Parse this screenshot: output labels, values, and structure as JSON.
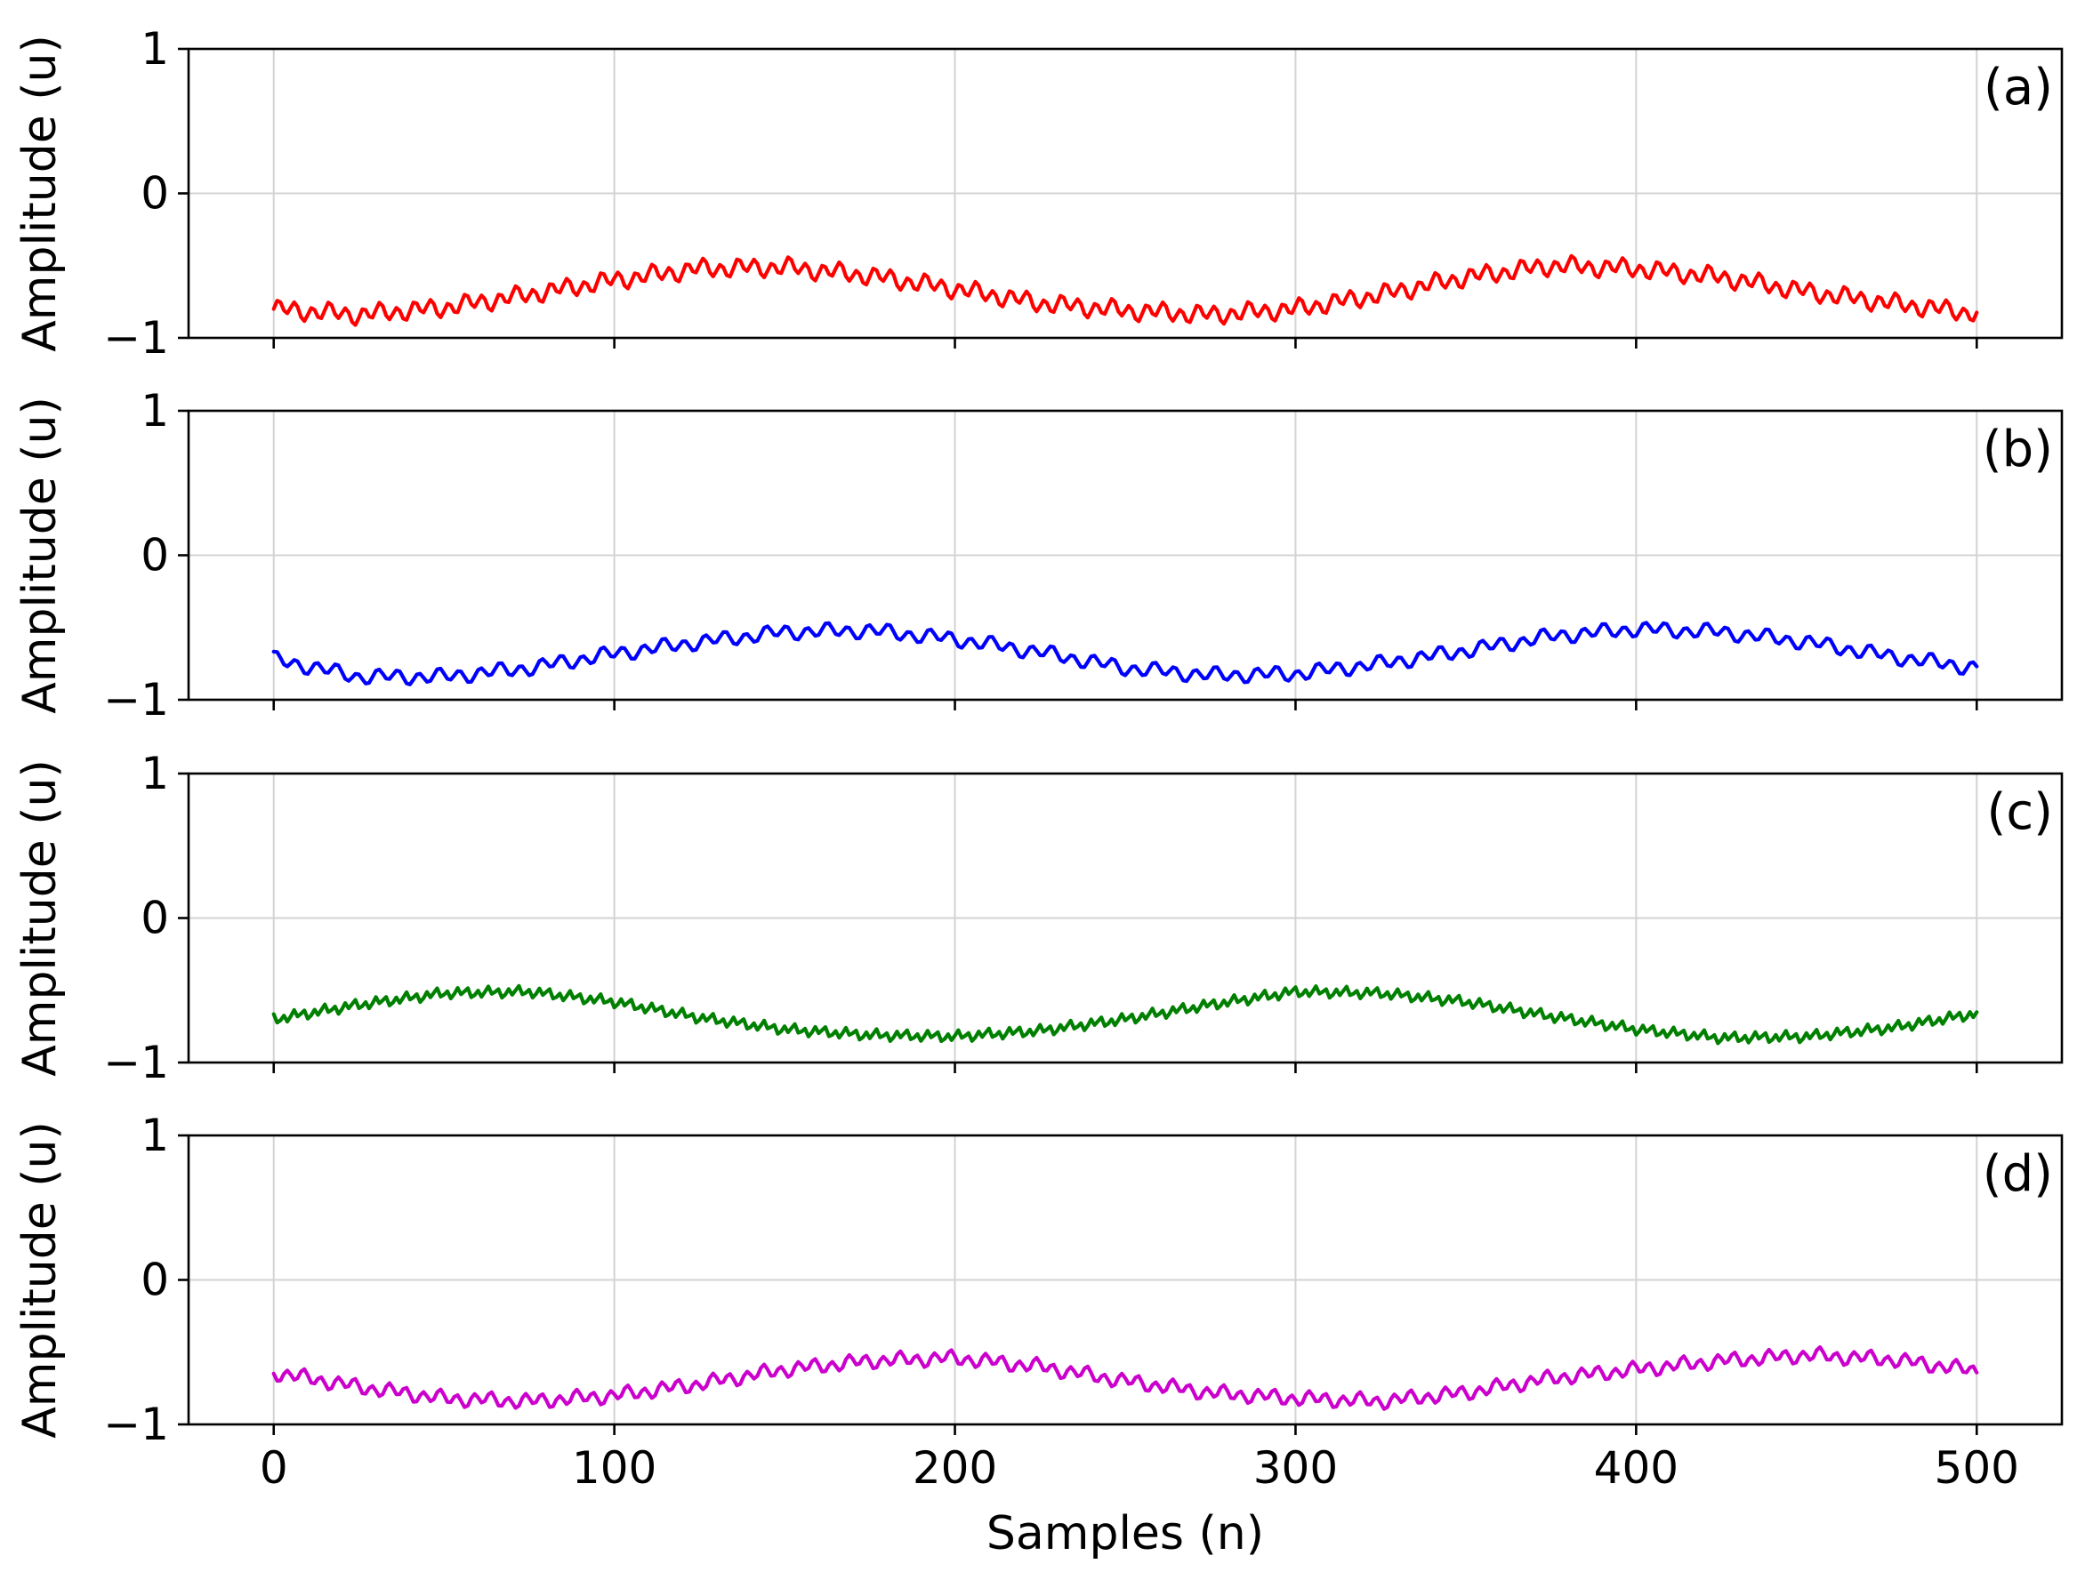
{
  "chart_data": [
    {
      "type": "line",
      "panel": "(a)",
      "ylabel": "Amplitude (u)",
      "xlabel": "",
      "xlim": [
        -25,
        525
      ],
      "ylim": [
        -1,
        1
      ],
      "xticks": [
        0,
        100,
        200,
        300,
        400,
        500
      ],
      "yticks": [
        1,
        0,
        -1
      ],
      "ytick_labels": [
        "1",
        "0",
        "−1"
      ],
      "grid": true,
      "series": [
        {
          "color": "#ff0000",
          "x": [
            0,
            25,
            50,
            75,
            100,
            125,
            150,
            175,
            200,
            225,
            250,
            275,
            300,
            325,
            350,
            375,
            400,
            425,
            450,
            475,
            500
          ],
          "y": [
            -0.8,
            -0.84,
            -0.79,
            -0.7,
            -0.6,
            -0.52,
            -0.51,
            -0.57,
            -0.66,
            -0.76,
            -0.81,
            -0.84,
            -0.8,
            -0.7,
            -0.58,
            -0.5,
            -0.52,
            -0.58,
            -0.68,
            -0.76,
            -0.83
          ],
          "noise_amplitude": 0.05,
          "noise_period": 5
        }
      ]
    },
    {
      "type": "line",
      "panel": "(b)",
      "ylabel": "Amplitude (u)",
      "xlabel": "",
      "xlim": [
        -25,
        525
      ],
      "ylim": [
        -1,
        1
      ],
      "xticks": [
        0,
        100,
        200,
        300,
        400,
        500
      ],
      "yticks": [
        1,
        0,
        -1
      ],
      "ytick_labels": [
        "1",
        "0",
        "−1"
      ],
      "grid": true,
      "series": [
        {
          "color": "#0000ff",
          "x": [
            0,
            25,
            50,
            75,
            100,
            125,
            150,
            175,
            200,
            225,
            250,
            275,
            300,
            325,
            350,
            375,
            400,
            425,
            450,
            475,
            500
          ],
          "y": [
            -0.72,
            -0.84,
            -0.84,
            -0.78,
            -0.68,
            -0.6,
            -0.53,
            -0.52,
            -0.58,
            -0.67,
            -0.78,
            -0.83,
            -0.82,
            -0.75,
            -0.66,
            -0.56,
            -0.51,
            -0.53,
            -0.6,
            -0.7,
            -0.78
          ],
          "noise_amplitude": 0.04,
          "noise_period": 6
        }
      ]
    },
    {
      "type": "line",
      "panel": "(c)",
      "ylabel": "Amplitude (u)",
      "xlabel": "",
      "xlim": [
        -25,
        525
      ],
      "ylim": [
        -1,
        1
      ],
      "xticks": [
        0,
        100,
        200,
        300,
        400,
        500
      ],
      "yticks": [
        1,
        0,
        -1
      ],
      "ytick_labels": [
        "1",
        "0",
        "−1"
      ],
      "grid": true,
      "series": [
        {
          "color": "#008000",
          "x": [
            0,
            25,
            50,
            75,
            100,
            125,
            150,
            175,
            200,
            225,
            250,
            275,
            300,
            325,
            350,
            375,
            400,
            425,
            450,
            475,
            500
          ],
          "y": [
            -0.7,
            -0.6,
            -0.52,
            -0.51,
            -0.58,
            -0.69,
            -0.77,
            -0.81,
            -0.82,
            -0.78,
            -0.7,
            -0.6,
            -0.51,
            -0.52,
            -0.58,
            -0.68,
            -0.77,
            -0.83,
            -0.82,
            -0.76,
            -0.66
          ],
          "noise_amplitude": 0.03,
          "noise_period": 3
        }
      ]
    },
    {
      "type": "line",
      "panel": "(d)",
      "ylabel": "Amplitude (u)",
      "xlabel": "Samples (n)",
      "xlim": [
        -25,
        525
      ],
      "ylim": [
        -1,
        1
      ],
      "xticks": [
        0,
        100,
        200,
        300,
        400,
        500
      ],
      "yticks": [
        1,
        0,
        -1
      ],
      "ytick_labels": [
        "1",
        "0",
        "−1"
      ],
      "xtick_labels": [
        "0",
        "100",
        "200",
        "300",
        "400",
        "500"
      ],
      "grid": true,
      "series": [
        {
          "color": "#cc00cc",
          "x": [
            0,
            25,
            50,
            75,
            100,
            125,
            150,
            175,
            200,
            225,
            250,
            275,
            300,
            325,
            350,
            375,
            400,
            425,
            450,
            475,
            500
          ],
          "y": [
            -0.64,
            -0.74,
            -0.82,
            -0.84,
            -0.8,
            -0.72,
            -0.62,
            -0.56,
            -0.54,
            -0.6,
            -0.7,
            -0.78,
            -0.82,
            -0.84,
            -0.78,
            -0.68,
            -0.62,
            -0.56,
            -0.52,
            -0.55,
            -0.63
          ],
          "noise_amplitude": 0.04,
          "noise_period": 5
        }
      ]
    }
  ]
}
